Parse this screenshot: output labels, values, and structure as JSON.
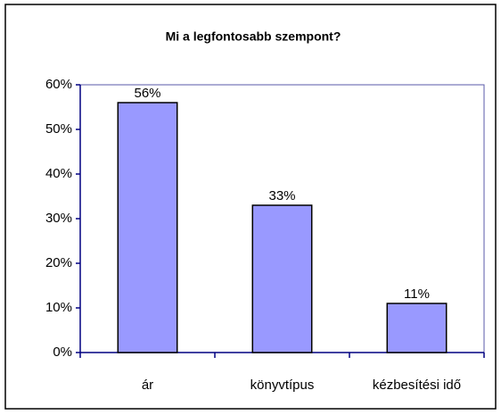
{
  "chart_data": {
    "type": "bar",
    "title": "Mi a legfontosabb szempont?",
    "categories": [
      "ár",
      "könyvtípus",
      "kézbesítési idő"
    ],
    "values": [
      56,
      33,
      11
    ],
    "value_labels": [
      "56%",
      "33%",
      "11%"
    ],
    "color": "#9999ff",
    "ylim": [
      0,
      60
    ],
    "yticks": [
      {
        "value": 0,
        "label": "0%"
      },
      {
        "value": 10,
        "label": "10%"
      },
      {
        "value": 20,
        "label": "20%"
      },
      {
        "value": 30,
        "label": "30%"
      },
      {
        "value": 40,
        "label": "40%"
      },
      {
        "value": 50,
        "label": "50%"
      },
      {
        "value": 60,
        "label": "60%"
      }
    ],
    "grid": false
  }
}
